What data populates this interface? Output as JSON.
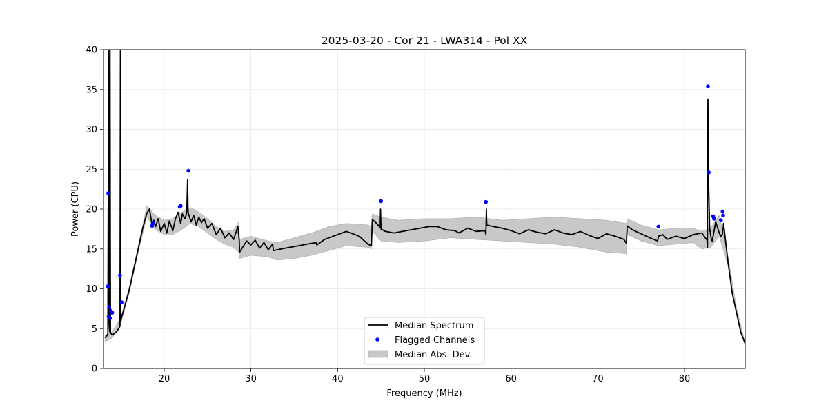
{
  "chart_data": {
    "type": "line",
    "title": "2025-03-20 - Cor 21 - LWA314 - Pol XX",
    "xlabel": "Frequency (MHz)",
    "ylabel": "Power (CPU)",
    "xlim": [
      13.0,
      87.0
    ],
    "ylim": [
      0,
      40
    ],
    "grid": true,
    "legend_position": "lower-center",
    "x_ticks": [
      20,
      30,
      40,
      50,
      60,
      70,
      80
    ],
    "y_ticks": [
      0,
      5,
      10,
      15,
      20,
      25,
      30,
      35,
      40
    ],
    "legend": {
      "median_label": "Median Spectrum",
      "flagged_label": "Flagged Channels",
      "mad_label": "Median Abs. Dev."
    },
    "series": [
      {
        "name": "Median Spectrum",
        "color": "#000000",
        "x": [
          13.2,
          13.5,
          13.6,
          13.65,
          13.7,
          13.75,
          13.8,
          14.0,
          14.5,
          14.9,
          14.95,
          15.0,
          15.1,
          15.5,
          16.0,
          16.5,
          17.0,
          17.5,
          18.0,
          18.3,
          18.6,
          18.8,
          19.0,
          19.3,
          19.6,
          20.0,
          20.3,
          20.6,
          21.0,
          21.3,
          21.6,
          21.9,
          22.1,
          22.4,
          22.6,
          22.7,
          22.75,
          22.8,
          23.1,
          23.4,
          23.7,
          24.0,
          24.3,
          24.6,
          25.0,
          25.5,
          26.0,
          26.5,
          27.0,
          27.5,
          28.0,
          28.5,
          28.65,
          28.7,
          29.5,
          30.0,
          30.5,
          31.0,
          31.5,
          32.0,
          32.5,
          32.6,
          33.5,
          34.5,
          35.5,
          36.5,
          37.5,
          37.6,
          38.5,
          39.5,
          40.5,
          41.0,
          41.5,
          42.5,
          43.5,
          43.9,
          44.0,
          44.5,
          44.9,
          44.95,
          45.0,
          45.5,
          46.5,
          47.5,
          48.5,
          49.5,
          50.5,
          51.5,
          52.5,
          53.5,
          54.0,
          55.0,
          56.0,
          57.0,
          57.1,
          57.15,
          57.2,
          58.0,
          59.0,
          60.0,
          61.0,
          62.0,
          63.0,
          64.0,
          65.0,
          66.0,
          67.0,
          68.0,
          69.0,
          70.0,
          71.0,
          72.0,
          73.0,
          73.3,
          73.4,
          74.0,
          75.0,
          76.0,
          76.9,
          77.0,
          77.5,
          78.0,
          79.0,
          80.0,
          81.0,
          82.0,
          82.4,
          82.6,
          82.65,
          82.7,
          82.75,
          82.9,
          83.0,
          83.1,
          83.2,
          83.6,
          84.0,
          84.2,
          84.4,
          84.5,
          85.0,
          85.5,
          86.0,
          86.5,
          87.0
        ],
        "y": [
          3.8,
          4.3,
          40.0,
          5.5,
          4.6,
          40.0,
          4.5,
          4.2,
          4.6,
          5.3,
          40.0,
          6.0,
          6.5,
          8.0,
          10.0,
          12.5,
          15.0,
          17.5,
          19.5,
          20.0,
          18.0,
          18.6,
          17.8,
          18.8,
          17.2,
          18.2,
          17.0,
          18.5,
          17.3,
          18.8,
          19.6,
          18.2,
          19.4,
          18.8,
          19.5,
          23.7,
          19.8,
          19.4,
          18.4,
          19.2,
          18.0,
          19.0,
          18.3,
          18.8,
          17.6,
          18.2,
          16.8,
          17.6,
          16.4,
          17.0,
          16.2,
          17.8,
          16.1,
          14.6,
          16.0,
          15.5,
          16.1,
          15.1,
          15.8,
          14.9,
          15.6,
          14.8,
          15.0,
          15.2,
          15.4,
          15.6,
          15.8,
          15.5,
          16.2,
          16.6,
          17.0,
          17.2,
          17.0,
          16.6,
          15.6,
          15.4,
          18.7,
          18.2,
          17.7,
          20.0,
          17.5,
          17.2,
          17.0,
          17.2,
          17.4,
          17.6,
          17.8,
          17.8,
          17.4,
          17.3,
          17.0,
          17.6,
          17.2,
          17.3,
          16.8,
          20.0,
          18.0,
          17.8,
          17.6,
          17.3,
          16.9,
          17.4,
          17.1,
          16.9,
          17.4,
          17.0,
          16.8,
          17.2,
          16.7,
          16.3,
          16.9,
          16.6,
          16.2,
          15.7,
          17.9,
          17.4,
          16.9,
          16.4,
          16.0,
          16.6,
          16.8,
          16.2,
          16.6,
          16.3,
          16.8,
          17.0,
          16.4,
          16.1,
          15.2,
          33.8,
          24.6,
          17.6,
          16.8,
          16.2,
          16.0,
          18.4,
          17.0,
          16.6,
          16.9,
          18.2,
          13.5,
          9.5,
          7.0,
          4.5,
          3.1
        ]
      }
    ],
    "band": {
      "name": "Median Abs. Dev.",
      "color": "#c8c8c8",
      "x": [
        13.2,
        14.0,
        15.0,
        16.0,
        17.0,
        18.0,
        19.0,
        20.0,
        21.0,
        22.0,
        23.0,
        24.0,
        25.0,
        26.0,
        27.0,
        28.0,
        28.6,
        28.7,
        30.0,
        32.0,
        33.0,
        35.0,
        37.0,
        39.0,
        41.0,
        43.5,
        43.9,
        44.0,
        45.0,
        47.0,
        50.0,
        53.0,
        56.0,
        59.0,
        62.0,
        65.0,
        68.0,
        71.0,
        73.3,
        73.4,
        75.0,
        77.0,
        79.0,
        81.0,
        82.0,
        83.0,
        84.0,
        85.0,
        86.0,
        87.0
      ],
      "lower": [
        3.4,
        3.8,
        5.6,
        9.6,
        14.6,
        19.0,
        17.4,
        16.8,
        16.8,
        17.4,
        18.2,
        17.8,
        17.0,
        16.2,
        15.6,
        15.2,
        14.6,
        13.8,
        14.2,
        14.0,
        13.6,
        13.8,
        14.2,
        14.8,
        15.4,
        15.2,
        15.0,
        17.2,
        16.0,
        15.8,
        16.0,
        16.4,
        16.2,
        16.0,
        15.8,
        15.6,
        15.2,
        14.6,
        14.4,
        16.8,
        16.0,
        15.4,
        15.6,
        15.8,
        15.0,
        15.2,
        16.6,
        13.0,
        6.8,
        3.0
      ],
      "upper": [
        4.2,
        4.6,
        6.4,
        10.4,
        15.4,
        20.4,
        19.2,
        18.6,
        18.8,
        19.6,
        20.2,
        19.6,
        18.8,
        17.8,
        17.2,
        17.4,
        18.4,
        16.2,
        16.6,
        16.0,
        15.8,
        16.4,
        17.0,
        17.8,
        18.2,
        18.0,
        17.8,
        19.4,
        19.0,
        18.6,
        18.8,
        18.8,
        19.0,
        18.6,
        18.8,
        19.0,
        18.8,
        18.6,
        18.2,
        18.8,
        18.0,
        17.4,
        17.6,
        17.6,
        17.2,
        17.6,
        19.2,
        14.2,
        7.6,
        3.2
      ]
    },
    "flagged_channels": {
      "name": "Flagged Channels",
      "color": "#0000ff",
      "x": [
        13.5,
        13.55,
        13.6,
        13.65,
        13.75,
        13.85,
        14.0,
        14.9,
        15.1,
        18.6,
        18.7,
        21.8,
        21.9,
        22.8,
        45.0,
        57.1,
        77.0,
        82.7,
        82.8,
        83.3,
        83.4,
        84.2,
        84.4,
        84.45
      ],
      "y": [
        10.3,
        22.0,
        6.5,
        7.7,
        6.3,
        7.2,
        7.0,
        11.7,
        8.3,
        17.9,
        18.2,
        20.3,
        20.4,
        24.8,
        21.0,
        20.9,
        17.8,
        35.4,
        24.6,
        19.1,
        18.8,
        18.6,
        19.7,
        19.2
      ]
    }
  }
}
